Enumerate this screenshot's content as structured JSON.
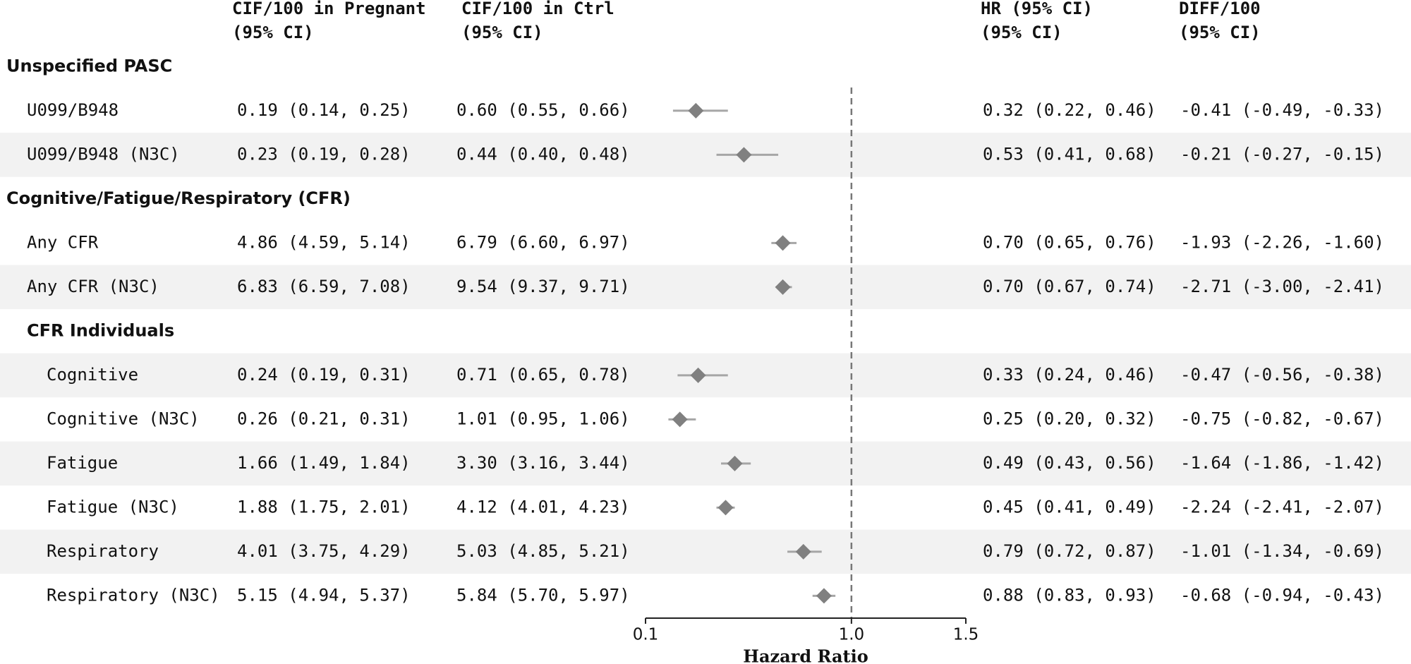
{
  "chart_data": {
    "type": "forest",
    "columns": {
      "cif_pregnant": [
        "CIF/100 in Pregnant",
        "(95% CI)"
      ],
      "cif_ctrl": [
        "CIF/100 in Ctrl",
        "(95% CI)"
      ],
      "hr_label": [
        "HR (95% CI)",
        "(95% CI)"
      ],
      "diff": [
        "DIFF/100",
        "(95% CI)"
      ]
    },
    "groups": [
      {
        "title": "Unspecified PASC",
        "rows": [
          {
            "label": "U099/B948",
            "cif_pregnant": "0.19 (0.14, 0.25)",
            "cif_ctrl": "0.60 (0.55, 0.66)",
            "hr": 0.32,
            "hr_low": 0.22,
            "hr_high": 0.46,
            "hr_label": "0.32 (0.22, 0.46)",
            "diff": "-0.41 (-0.49, -0.33)"
          },
          {
            "label": "U099/B948 (N3C)",
            "cif_pregnant": "0.23 (0.19, 0.28)",
            "cif_ctrl": "0.44 (0.40, 0.48)",
            "hr": 0.53,
            "hr_low": 0.41,
            "hr_high": 0.68,
            "hr_label": "0.53 (0.41, 0.68)",
            "diff": "-0.21 (-0.27, -0.15)"
          }
        ]
      },
      {
        "title": "Cognitive/Fatigue/Respiratory (CFR)",
        "rows": [
          {
            "label": "Any CFR",
            "cif_pregnant": "4.86 (4.59, 5.14)",
            "cif_ctrl": "6.79 (6.60, 6.97)",
            "hr": 0.7,
            "hr_low": 0.65,
            "hr_high": 0.76,
            "hr_label": "0.70 (0.65, 0.76)",
            "diff": "-1.93 (-2.26, -1.60)"
          },
          {
            "label": "Any CFR (N3C)",
            "cif_pregnant": "6.83 (6.59, 7.08)",
            "cif_ctrl": "9.54 (9.37, 9.71)",
            "hr": 0.7,
            "hr_low": 0.67,
            "hr_high": 0.74,
            "hr_label": "0.70 (0.67, 0.74)",
            "diff": "-2.71 (-3.00, -2.41)"
          }
        ],
        "subgroups": [
          {
            "title": "CFR Individuals",
            "rows": [
              {
                "label": "Cognitive",
                "cif_pregnant": "0.24 (0.19, 0.31)",
                "cif_ctrl": "0.71 (0.65, 0.78)",
                "hr": 0.33,
                "hr_low": 0.24,
                "hr_high": 0.46,
                "hr_label": "0.33 (0.24, 0.46)",
                "diff": "-0.47 (-0.56, -0.38)"
              },
              {
                "label": "Cognitive (N3C)",
                "cif_pregnant": "0.26 (0.21, 0.31)",
                "cif_ctrl": "1.01 (0.95, 1.06)",
                "hr": 0.25,
                "hr_low": 0.2,
                "hr_high": 0.32,
                "hr_label": "0.25 (0.20, 0.32)",
                "diff": "-0.75 (-0.82, -0.67)"
              },
              {
                "label": "Fatigue",
                "cif_pregnant": "1.66 (1.49, 1.84)",
                "cif_ctrl": "3.30 (3.16, 3.44)",
                "hr": 0.49,
                "hr_low": 0.43,
                "hr_high": 0.56,
                "hr_label": "0.49 (0.43, 0.56)",
                "diff": "-1.64 (-1.86, -1.42)"
              },
              {
                "label": "Fatigue (N3C)",
                "cif_pregnant": "1.88 (1.75, 2.01)",
                "cif_ctrl": "4.12 (4.01, 4.23)",
                "hr": 0.45,
                "hr_low": 0.41,
                "hr_high": 0.49,
                "hr_label": "0.45 (0.41, 0.49)",
                "diff": "-2.24 (-2.41, -2.07)"
              },
              {
                "label": "Respiratory",
                "cif_pregnant": "4.01 (3.75, 4.29)",
                "cif_ctrl": "5.03 (4.85, 5.21)",
                "hr": 0.79,
                "hr_low": 0.72,
                "hr_high": 0.87,
                "hr_label": "0.79 (0.72, 0.87)",
                "diff": "-1.01 (-1.34, -0.69)"
              },
              {
                "label": "Respiratory (N3C)",
                "cif_pregnant": "5.15 (4.94, 5.37)",
                "cif_ctrl": "5.84 (5.70, 5.97)",
                "hr": 0.88,
                "hr_low": 0.83,
                "hr_high": 0.93,
                "hr_label": "0.88 (0.83, 0.93)",
                "diff": "-0.68 (-0.94, -0.43)"
              }
            ]
          }
        ]
      }
    ],
    "xlabel": "Hazard Ratio",
    "xlim": [
      0.1,
      1.5
    ],
    "xticks": [
      0.1,
      {
        "value": 1,
        "label": "1.0"
      },
      1.5
    ],
    "reference_line": 1,
    "color": "#808080",
    "ci_color": "#a6a6a6"
  }
}
